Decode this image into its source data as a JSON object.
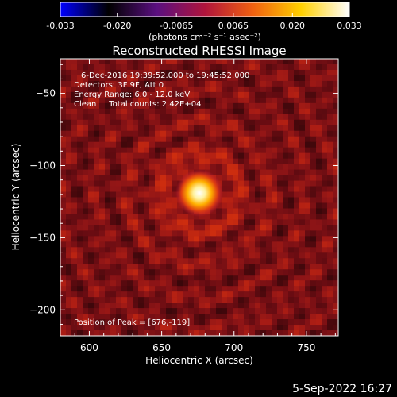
{
  "colorbar": {
    "ticks": [
      "-0.033",
      "-0.020",
      "-0.0065",
      "0.0065",
      "0.020",
      "0.033"
    ],
    "unit_label": "(photons cm⁻² s⁻¹ asec⁻²)",
    "colors": [
      "#0000ff",
      "#000000",
      "#5a0f80",
      "#b0143c",
      "#f06010",
      "#ffd000",
      "#ffffff"
    ]
  },
  "chart_data": {
    "type": "heatmap",
    "title": "Reconstructed RHESSI Image",
    "xlabel": "Heliocentric X (arcsec)",
    "ylabel": "Heliocentric Y (arcsec)",
    "xlim": [
      580,
      772
    ],
    "ylim": [
      -218,
      -26
    ],
    "x_ticks": [
      600,
      650,
      700,
      750
    ],
    "y_ticks": [
      -50,
      -100,
      -150,
      -200
    ],
    "value_range": [
      -0.033,
      0.033
    ],
    "colormap": "RHESSI (blue-black-purple-red-orange-yellow-white)",
    "peak": {
      "x": 676,
      "y": -119
    },
    "annotations": [
      "6-Dec-2016 19:39:52.000 to 19:45:52.000",
      "Detectors: 3F 9F, Att 0",
      "Energy Range: 6.0 - 12.0 keV",
      "Clean     Total counts: 2.42E+04",
      "Position of Peak = [676,-119]"
    ]
  },
  "footer": {
    "timestamp": "5-Sep-2022 16:27"
  }
}
